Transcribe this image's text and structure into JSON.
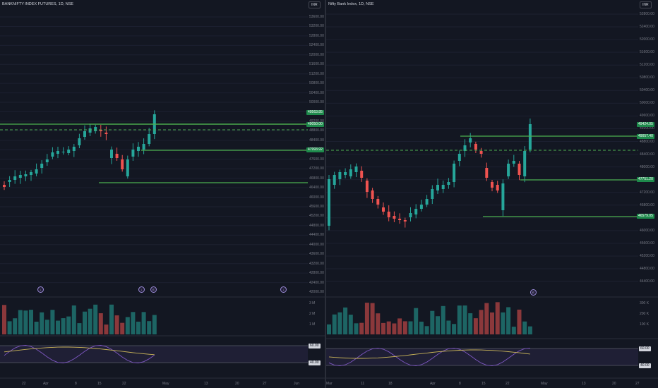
{
  "colors": {
    "background": "#131722",
    "up": "#26a69a",
    "down": "#ef5350",
    "level_line": "#4caf50",
    "rsi_line": "#7e57c2",
    "rsi_ma": "#c9b458",
    "price_tag": "#1e8a4c"
  },
  "left": {
    "title": "BANKNIFTY INDEX FUTURES, 1D, NSE",
    "currency_button": "INR",
    "price_ticks": [
      "53600.00",
      "53200.00",
      "52800.00",
      "52400.00",
      "52000.00",
      "51600.00",
      "51200.00",
      "50800.00",
      "50400.00",
      "50000.00",
      "49600.00",
      "49200.00",
      "48800.00",
      "48400.00",
      "48000.00",
      "47600.00",
      "47200.00",
      "46800.00",
      "46400.00",
      "46000.00",
      "45600.00",
      "45200.00",
      "44800.00",
      "44400.00",
      "44000.00",
      "43600.00",
      "43200.00",
      "42800.00",
      "42400.00",
      "42000.00"
    ],
    "price_tags": [
      "49563.85",
      "49050.00",
      "47993.92"
    ],
    "volume_ticks": [
      "3 M",
      "2 M",
      "1 M"
    ],
    "rsi_tags": [
      "60.00",
      "40.00"
    ],
    "date_ticks": [
      "22",
      "Apr",
      "8",
      "15",
      "22",
      "May",
      "13",
      "20",
      "27",
      "Jun"
    ],
    "event_icons": [
      "↓",
      "↓",
      "E",
      "↓"
    ]
  },
  "right": {
    "title": "Nifty Bank Index, 1D, NSE",
    "currency_button": "INR",
    "price_ticks": [
      "52800.00",
      "52400.00",
      "52000.00",
      "51600.00",
      "51200.00",
      "50800.00",
      "50400.00",
      "50000.00",
      "49600.00",
      "49200.00",
      "48800.00",
      "48400.00",
      "48000.00",
      "47600.00",
      "47200.00",
      "46800.00",
      "46400.00",
      "46000.00",
      "45600.00",
      "45200.00",
      "44800.00",
      "44400.00"
    ],
    "price_tags": [
      "49424.05",
      "49057.40",
      "47751.20",
      "46579.05"
    ],
    "volume_ticks": [
      "300 K",
      "200 K",
      "100 K"
    ],
    "rsi_tags": [
      "60.00",
      "40.00"
    ],
    "date_ticks": [
      "Mar",
      "11",
      "18",
      "Apr",
      "8",
      "15",
      "22",
      "May",
      "13",
      "20",
      "27"
    ],
    "event_icons": [
      "E"
    ]
  }
}
